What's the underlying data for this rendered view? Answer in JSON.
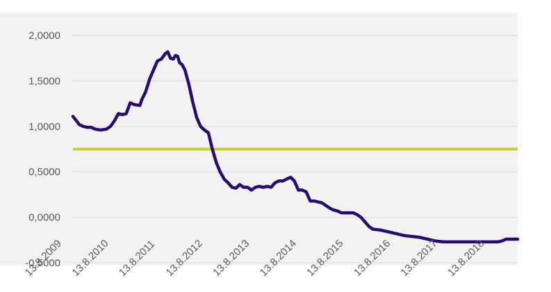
{
  "colors": {
    "plot_background": "#f2f2f2",
    "gridline": "#d9d9d9",
    "series_line": "#2a0a6e",
    "reference_line": "#c6d033",
    "tick_text": "#595959"
  },
  "chart_data": {
    "type": "line",
    "title": "",
    "xlabel": "",
    "ylabel": "",
    "grid": true,
    "legend": "none",
    "ylim": [
      -0.5,
      2.0
    ],
    "yticks": [
      -0.5,
      0.0,
      0.5,
      1.0,
      1.5,
      2.0
    ],
    "ytick_labels": [
      "-0,5000",
      "0,0000",
      "0,5000",
      "1,0000",
      "1,5000",
      "2,0000"
    ],
    "xlim": [
      "2009-08-13",
      "2019-01-31"
    ],
    "xticks": [
      "2009-08-13",
      "2010-08-13",
      "2011-08-13",
      "2012-08-13",
      "2013-08-13",
      "2014-08-13",
      "2015-08-13",
      "2016-08-13",
      "2017-08-13",
      "2018-08-13"
    ],
    "xtick_labels": [
      "13.8.2009",
      "13.8.2010",
      "13.8.2011",
      "13.8.2012",
      "13.8.2013",
      "13.8.2014",
      "13.8.2015",
      "13.8.2016",
      "13.8.2017",
      "13.8.2018"
    ],
    "series": [
      {
        "points": [
          [
            "2009-08-13",
            1.11
          ],
          [
            "2009-09-10",
            1.06
          ],
          [
            "2009-10-01",
            1.02
          ],
          [
            "2009-11-01",
            1.0
          ],
          [
            "2009-12-01",
            0.99
          ],
          [
            "2010-01-01",
            0.99
          ],
          [
            "2010-02-01",
            0.97
          ],
          [
            "2010-03-15",
            0.96
          ],
          [
            "2010-05-01",
            0.97
          ],
          [
            "2010-06-01",
            1.0
          ],
          [
            "2010-07-01",
            1.06
          ],
          [
            "2010-08-01",
            1.14
          ],
          [
            "2010-09-01",
            1.13
          ],
          [
            "2010-10-01",
            1.14
          ],
          [
            "2010-11-01",
            1.26
          ],
          [
            "2010-12-01",
            1.24
          ],
          [
            "2011-01-15",
            1.23
          ],
          [
            "2011-02-01",
            1.3
          ],
          [
            "2011-03-01",
            1.38
          ],
          [
            "2011-04-01",
            1.52
          ],
          [
            "2011-05-01",
            1.62
          ],
          [
            "2011-06-01",
            1.72
          ],
          [
            "2011-07-01",
            1.74
          ],
          [
            "2011-08-01",
            1.8
          ],
          [
            "2011-08-20",
            1.82
          ],
          [
            "2011-09-10",
            1.75
          ],
          [
            "2011-10-01",
            1.74
          ],
          [
            "2011-10-20",
            1.78
          ],
          [
            "2011-11-05",
            1.77
          ],
          [
            "2011-11-20",
            1.7
          ],
          [
            "2011-12-10",
            1.68
          ],
          [
            "2012-01-01",
            1.62
          ],
          [
            "2012-02-01",
            1.46
          ],
          [
            "2012-03-01",
            1.27
          ],
          [
            "2012-04-01",
            1.1
          ],
          [
            "2012-05-01",
            1.0
          ],
          [
            "2012-06-01",
            0.96
          ],
          [
            "2012-07-01",
            0.93
          ],
          [
            "2012-08-01",
            0.75
          ],
          [
            "2012-09-01",
            0.6
          ],
          [
            "2012-10-01",
            0.5
          ],
          [
            "2012-11-01",
            0.42
          ],
          [
            "2012-12-01",
            0.38
          ],
          [
            "2013-01-01",
            0.33
          ],
          [
            "2013-02-01",
            0.32
          ],
          [
            "2013-03-01",
            0.36
          ],
          [
            "2013-04-01",
            0.33
          ],
          [
            "2013-05-01",
            0.33
          ],
          [
            "2013-06-01",
            0.3
          ],
          [
            "2013-07-01",
            0.33
          ],
          [
            "2013-08-01",
            0.34
          ],
          [
            "2013-09-01",
            0.33
          ],
          [
            "2013-10-01",
            0.34
          ],
          [
            "2013-11-01",
            0.33
          ],
          [
            "2013-12-01",
            0.38
          ],
          [
            "2014-01-01",
            0.4
          ],
          [
            "2014-02-01",
            0.4
          ],
          [
            "2014-03-01",
            0.42
          ],
          [
            "2014-04-01",
            0.44
          ],
          [
            "2014-05-01",
            0.4
          ],
          [
            "2014-06-01",
            0.3
          ],
          [
            "2014-07-01",
            0.3
          ],
          [
            "2014-08-01",
            0.28
          ],
          [
            "2014-09-01",
            0.18
          ],
          [
            "2014-10-01",
            0.18
          ],
          [
            "2014-11-01",
            0.17
          ],
          [
            "2014-12-01",
            0.16
          ],
          [
            "2015-01-01",
            0.13
          ],
          [
            "2015-02-01",
            0.1
          ],
          [
            "2015-03-01",
            0.08
          ],
          [
            "2015-04-01",
            0.07
          ],
          [
            "2015-05-01",
            0.05
          ],
          [
            "2015-06-01",
            0.05
          ],
          [
            "2015-08-01",
            0.05
          ],
          [
            "2015-09-01",
            0.03
          ],
          [
            "2015-10-01",
            0.0
          ],
          [
            "2015-11-01",
            -0.05
          ],
          [
            "2015-12-01",
            -0.1
          ],
          [
            "2016-01-01",
            -0.13
          ],
          [
            "2016-03-01",
            -0.14
          ],
          [
            "2016-05-01",
            -0.16
          ],
          [
            "2016-07-01",
            -0.18
          ],
          [
            "2016-09-01",
            -0.2
          ],
          [
            "2016-11-01",
            -0.21
          ],
          [
            "2017-01-01",
            -0.22
          ],
          [
            "2017-03-01",
            -0.24
          ],
          [
            "2017-05-01",
            -0.26
          ],
          [
            "2017-07-01",
            -0.27
          ],
          [
            "2017-09-01",
            -0.27
          ],
          [
            "2017-11-01",
            -0.27
          ],
          [
            "2018-01-01",
            -0.27
          ],
          [
            "2018-03-01",
            -0.27
          ],
          [
            "2018-05-01",
            -0.27
          ],
          [
            "2018-07-01",
            -0.27
          ],
          [
            "2018-09-01",
            -0.27
          ],
          [
            "2018-10-01",
            -0.26
          ],
          [
            "2018-11-01",
            -0.24
          ],
          [
            "2018-12-01",
            -0.24
          ],
          [
            "2019-01-31",
            -0.24
          ]
        ]
      }
    ],
    "reference_line": {
      "y": 0.75
    }
  }
}
